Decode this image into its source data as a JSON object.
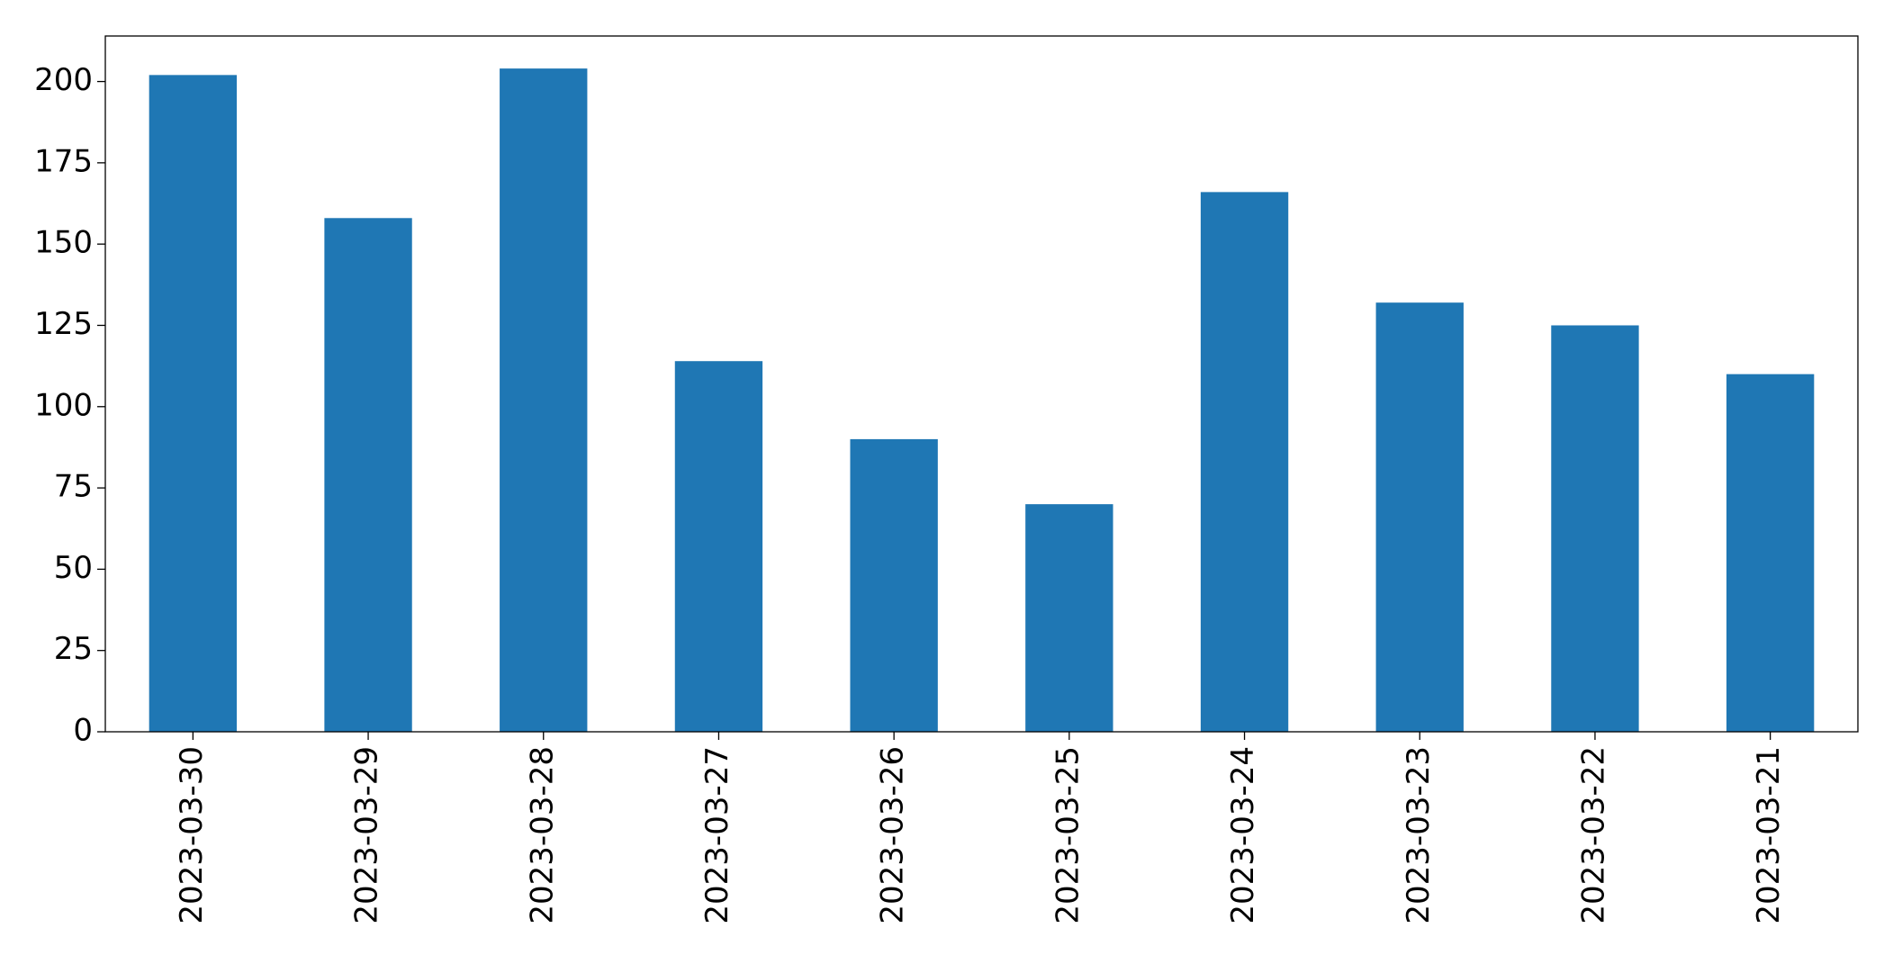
{
  "chart_data": {
    "type": "bar",
    "categories": [
      "2023-03-30",
      "2023-03-29",
      "2023-03-28",
      "2023-03-27",
      "2023-03-26",
      "2023-03-25",
      "2023-03-24",
      "2023-03-23",
      "2023-03-22",
      "2023-03-21"
    ],
    "values": [
      202,
      158,
      204,
      114,
      90,
      70,
      166,
      132,
      125,
      110
    ],
    "color": "#1f77b4",
    "ylim": [
      0,
      214
    ],
    "yticks": [
      0,
      25,
      50,
      75,
      100,
      125,
      150,
      175,
      200
    ],
    "grid": false
  }
}
